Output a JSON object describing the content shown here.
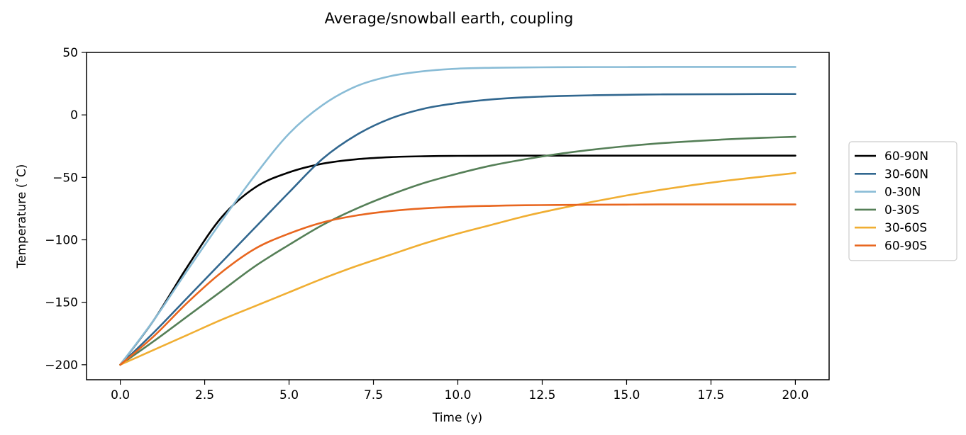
{
  "chart_data": {
    "type": "line",
    "title": "Average/snowball earth, coupling",
    "xlabel": "Time (y)",
    "ylabel": "Temperature (˚C)",
    "xlim": [
      -1.0,
      21.0
    ],
    "ylim": [
      -212,
      50
    ],
    "xticks": [
      0.0,
      2.5,
      5.0,
      7.5,
      10.0,
      12.5,
      15.0,
      17.5,
      20.0
    ],
    "xtick_labels": [
      "0.0",
      "2.5",
      "5.0",
      "7.5",
      "10.0",
      "12.5",
      "15.0",
      "17.5",
      "20.0"
    ],
    "yticks": [
      50,
      0,
      -50,
      -100,
      -150,
      -200
    ],
    "ytick_labels": [
      "50",
      "0",
      "−50",
      "−100",
      "−150",
      "−200"
    ],
    "grid": false,
    "legend_position": "outside right",
    "x": [
      0,
      1,
      2,
      3,
      4,
      5,
      6,
      7,
      8,
      9,
      10,
      11,
      12,
      13,
      14,
      15,
      16,
      17,
      18,
      19,
      20
    ],
    "series": [
      {
        "name": "60-90N",
        "color": "#000000",
        "values": [
          -200,
          -164,
          -121,
          -82,
          -58,
          -46,
          -39,
          -35.5,
          -33.8,
          -33.1,
          -32.8,
          -32.7,
          -32.6,
          -32.6,
          -32.6,
          -32.6,
          -32.6,
          -32.6,
          -32.6,
          -32.6,
          -32.6
        ]
      },
      {
        "name": "30-60N",
        "color": "#31678f",
        "values": [
          -200,
          -174,
          -146,
          -118,
          -90,
          -62,
          -35,
          -16,
          -3,
          5,
          9.5,
          12.4,
          14.1,
          15.1,
          15.7,
          16.1,
          16.4,
          16.5,
          16.6,
          16.7,
          16.7
        ]
      },
      {
        "name": "0-30N",
        "color": "#89bcd6",
        "values": [
          -200,
          -164,
          -124,
          -85,
          -48,
          -15,
          8,
          23,
          31,
          35,
          37,
          37.7,
          38,
          38.2,
          38.3,
          38.3,
          38.4,
          38.4,
          38.4,
          38.4,
          38.4
        ]
      },
      {
        "name": "0-30S",
        "color": "#557f57",
        "values": [
          -200,
          -181,
          -161,
          -141,
          -121,
          -104,
          -88,
          -75,
          -64,
          -54.5,
          -47,
          -40.5,
          -35.5,
          -31.2,
          -27.8,
          -25,
          -22.7,
          -21,
          -19.5,
          -18.4,
          -17.5
        ]
      },
      {
        "name": "30-60S",
        "color": "#f0ae32",
        "values": [
          -200,
          -188,
          -176,
          -164,
          -153,
          -142,
          -131,
          -121,
          -112,
          -103,
          -95,
          -88,
          -81,
          -75,
          -69.5,
          -64.5,
          -60,
          -56,
          -52.5,
          -49.5,
          -46.5
        ]
      },
      {
        "name": "60-90S",
        "color": "#e8661f",
        "values": [
          -200,
          -177,
          -150,
          -126,
          -107,
          -95,
          -86,
          -80.5,
          -77,
          -74.8,
          -73.5,
          -72.8,
          -72.3,
          -72.1,
          -71.9,
          -71.8,
          -71.7,
          -71.7,
          -71.7,
          -71.7,
          -71.7
        ]
      }
    ]
  }
}
